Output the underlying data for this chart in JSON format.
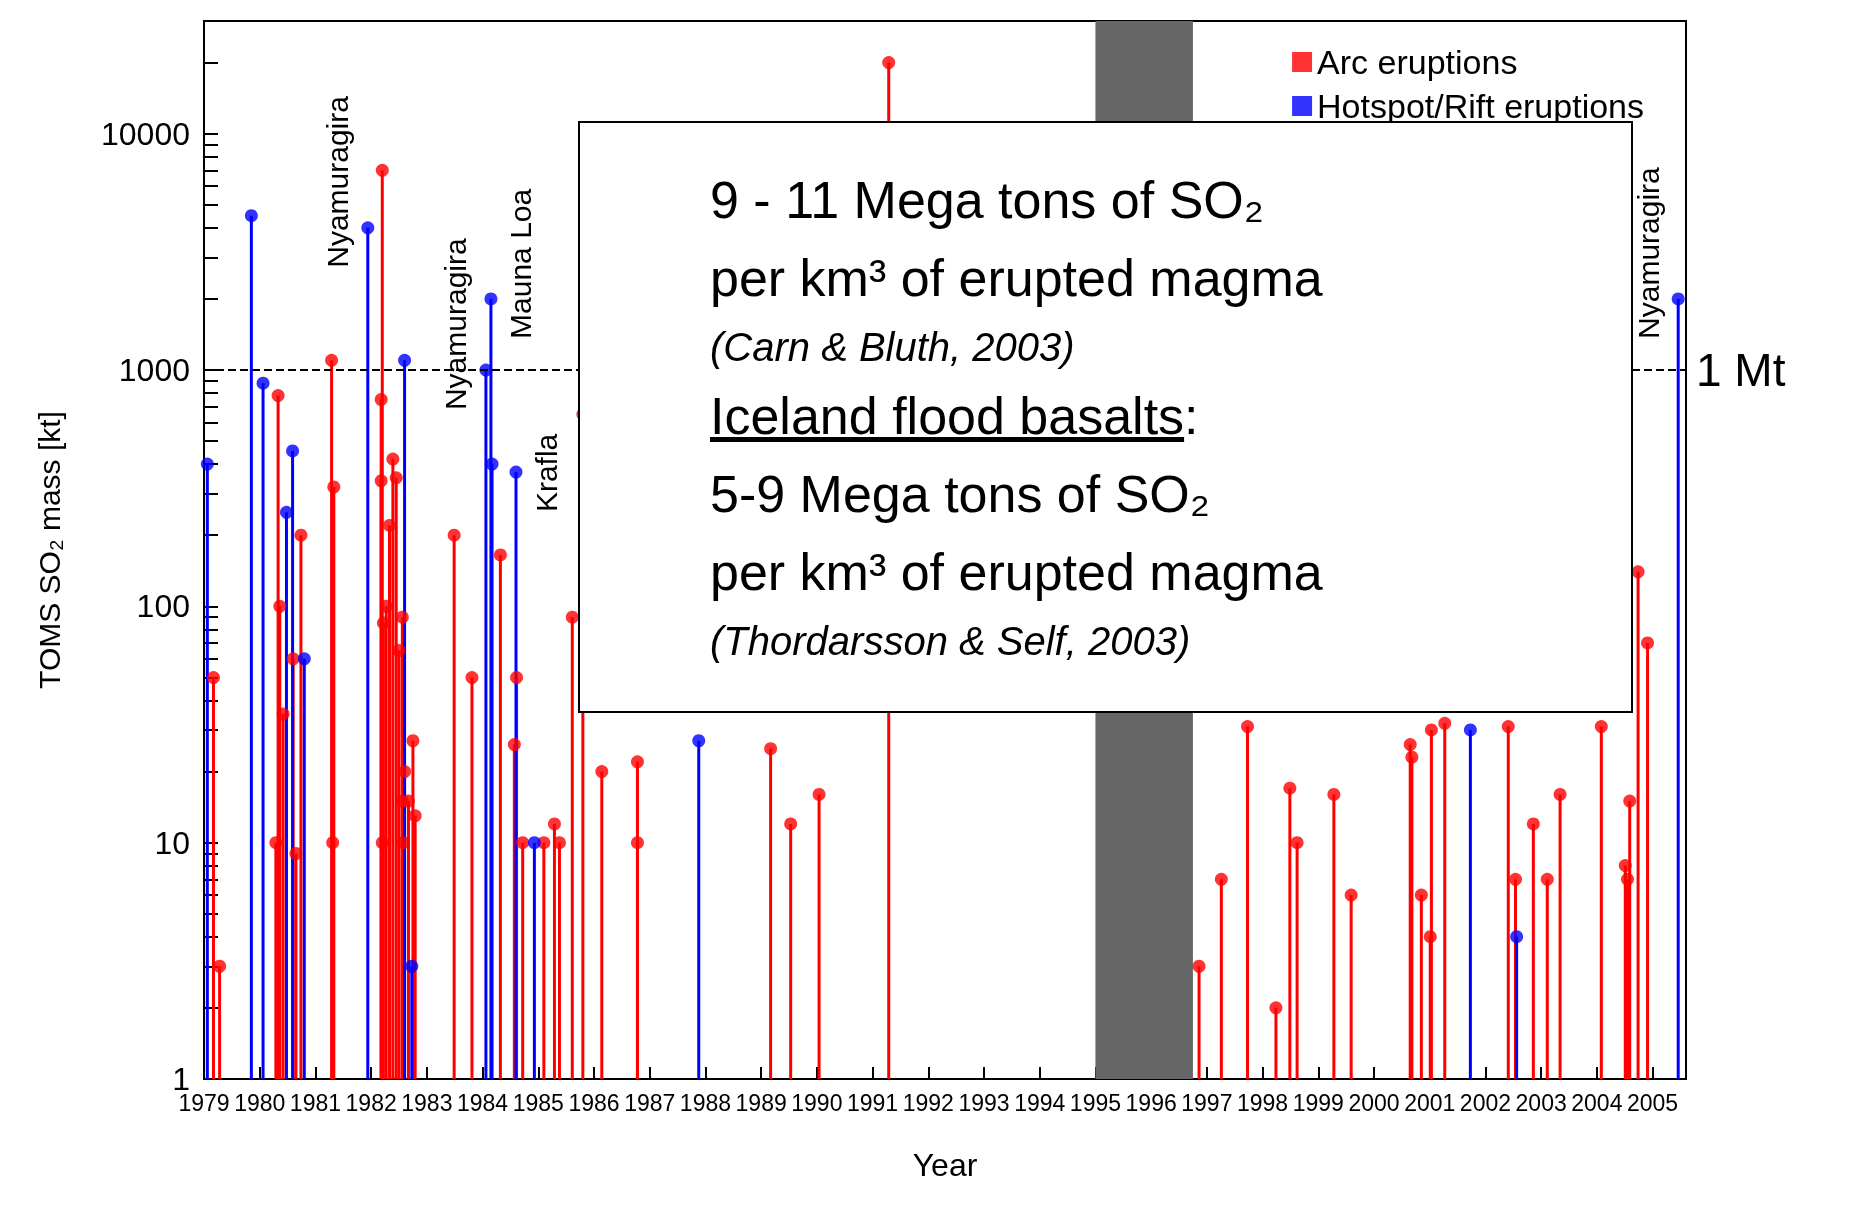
{
  "chart_data": {
    "type": "lollipop",
    "xlabel": "Year",
    "ylabel": "TOMS SO₂ mass [kt]",
    "xlim": [
      1979,
      2005.6
    ],
    "xticks": [
      1979,
      1980,
      1981,
      1982,
      1983,
      1984,
      1985,
      1986,
      1987,
      1988,
      1989,
      1990,
      1991,
      1992,
      1993,
      1994,
      1995,
      1996,
      1997,
      1998,
      1999,
      2000,
      2001,
      2002,
      2003,
      2004,
      2005
    ],
    "ylim": [
      1,
      30000
    ],
    "yticks": [
      1,
      10,
      100,
      1000,
      10000
    ],
    "log": "y",
    "grid": false,
    "legend": "top right",
    "marker": "circle",
    "series": [
      {
        "name": "Arc eruptions",
        "color": "#ff0000",
        "x": [
          1979.17,
          1979.28,
          1980.29,
          1980.33,
          1980.36,
          1980.42,
          1980.6,
          1980.65,
          1980.74,
          1981.29,
          1981.31,
          1981.33,
          1982.2,
          1982.18,
          1982.18,
          1982.2,
          1982.22,
          1982.27,
          1982.33,
          1982.39,
          1982.45,
          1982.5,
          1982.56,
          1982.6,
          1982.56,
          1982.67,
          1982.58,
          1982.75,
          1982.79,
          1983.49,
          1983.81,
          1984.32,
          1984.57,
          1984.61,
          1984.72,
          1985.1,
          1985.29,
          1985.38,
          1985.61,
          1985.8,
          1986.14,
          1986.78,
          1986.78,
          1989.17,
          1989.53,
          1990.04,
          1991.29,
          1996.86,
          1997.26,
          1997.73,
          1998.24,
          1998.49,
          1998.62,
          1999.28,
          1999.59,
          2000.65,
          2000.68,
          2000.85,
          2001.01,
          2001.03,
          2001.27,
          2002.41,
          2002.54,
          2002.86,
          2003.11,
          2003.34,
          2004.08,
          2004.51,
          2004.55,
          2004.59,
          2004.74,
          2004.91
        ],
        "values": [
          50,
          3,
          10,
          780,
          100,
          35,
          60,
          9,
          200,
          1100,
          10,
          320,
          7000,
          750,
          340,
          10,
          85,
          100,
          220,
          420,
          350,
          65,
          90,
          20,
          15,
          15,
          10,
          27,
          13,
          200,
          50,
          165,
          26,
          50,
          10,
          10,
          12,
          10,
          90,
          650,
          20,
          22,
          10,
          25,
          12,
          16,
          20000,
          3,
          7,
          31,
          2,
          17,
          10,
          16,
          6,
          26,
          23,
          6,
          4,
          30,
          32,
          31,
          7,
          12,
          7,
          16,
          31,
          8,
          7,
          15,
          140,
          70
        ]
      },
      {
        "name": "Hotspot/Rift eruptions",
        "color": "#0000ff",
        "x": [
          1979.06,
          1979.85,
          1980.06,
          1980.48,
          1980.59,
          1980.8,
          1981.94,
          1982.6,
          1982.73,
          1984.06,
          1984.15,
          1984.17,
          1984.6,
          1984.93,
          1987.88,
          2001.73,
          2002.56,
          2005.46
        ],
        "values": [
          400,
          4500,
          880,
          250,
          455,
          60,
          4000,
          1100,
          3,
          1000,
          2000,
          400,
          370,
          10,
          27,
          30,
          4,
          2000
        ]
      }
    ],
    "bands": [
      {
        "axis": "x",
        "from": 1995,
        "to": 1996.75,
        "color": "#666666"
      }
    ],
    "ref_lines": [
      {
        "axis": "y",
        "value": 1000,
        "label": "1 Mt",
        "line_style": "dashed",
        "color": "#000000"
      }
    ],
    "annotations": [
      {
        "text": "Nyamuragira",
        "x": 1981.94,
        "y": 4000
      },
      {
        "text": "Nyamuragira",
        "x": 1984.06,
        "y": 1000
      },
      {
        "text": "Mauna Loa",
        "x": 1984.15,
        "y": 2000
      },
      {
        "text": "Krafla",
        "x": 1984.6,
        "y": 370
      },
      {
        "text": "Nyamuragira",
        "x": 2005.46,
        "y": 2000
      },
      "9 - 11 Mega tons of SO₂",
      "per km³ of erupted magma",
      "(Carn & Bluth, 2003)",
      "Iceland flood basalts:",
      "5-9 Mega tons of SO₂",
      "per km³ of erupted magma",
      "(Thordarsson & Self, 2003)"
    ]
  }
}
